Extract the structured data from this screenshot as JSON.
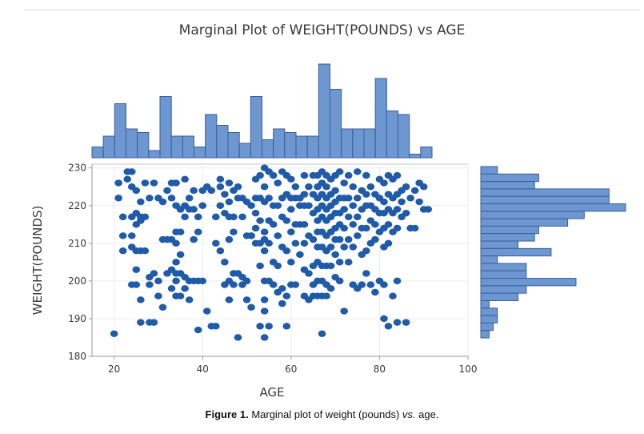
{
  "chart_data": {
    "type": "scatter",
    "title": "Marginal Plot of WEIGHT(POUNDS) vs AGE",
    "xlabel": "AGE",
    "ylabel": "WEIGHT(POUNDS)",
    "xlim": [
      15,
      100
    ],
    "ylim": [
      180,
      231
    ],
    "xticks": [
      20,
      40,
      60,
      80,
      100
    ],
    "yticks": [
      180,
      190,
      200,
      210,
      220,
      230
    ],
    "grid": true,
    "marker_color": "#1f5ba8",
    "hist_color": "#6d97d1",
    "hist_edge": "#3a5e9a",
    "age_histogram": {
      "bins": [
        {
          "x0": 19,
          "x1": 21,
          "count": 3
        },
        {
          "x0": 21,
          "x1": 23,
          "count": 6
        },
        {
          "x0": 23,
          "x1": 25,
          "count": 15
        },
        {
          "x0": 25,
          "x1": 27,
          "count": 8
        },
        {
          "x0": 27,
          "x1": 29,
          "count": 7
        },
        {
          "x0": 29,
          "x1": 31,
          "count": 2
        },
        {
          "x0": 31,
          "x1": 33,
          "count": 17
        },
        {
          "x0": 33,
          "x1": 35,
          "count": 6
        },
        {
          "x0": 35,
          "x1": 37,
          "count": 6
        },
        {
          "x0": 37,
          "x1": 39,
          "count": 3
        },
        {
          "x0": 39,
          "x1": 41,
          "count": 12
        },
        {
          "x0": 41,
          "x1": 43,
          "count": 9
        },
        {
          "x0": 43,
          "x1": 45,
          "count": 7
        },
        {
          "x0": 45,
          "x1": 47,
          "count": 4
        },
        {
          "x0": 47,
          "x1": 49,
          "count": 17
        },
        {
          "x0": 49,
          "x1": 51,
          "count": 5
        },
        {
          "x0": 51,
          "x1": 53,
          "count": 8
        },
        {
          "x0": 53,
          "x1": 55,
          "count": 7
        },
        {
          "x0": 55,
          "x1": 57,
          "count": 6
        },
        {
          "x0": 57,
          "x1": 59,
          "count": 6
        },
        {
          "x0": 59,
          "x1": 61,
          "count": 26
        },
        {
          "x0": 61,
          "x1": 63,
          "count": 19
        },
        {
          "x0": 63,
          "x1": 65,
          "count": 8
        },
        {
          "x0": 65,
          "x1": 67,
          "count": 8
        },
        {
          "x0": 67,
          "x1": 69,
          "count": 8
        },
        {
          "x0": 69,
          "x1": 71,
          "count": 22
        },
        {
          "x0": 71,
          "x1": 73,
          "count": 13
        },
        {
          "x0": 73,
          "x1": 75,
          "count": 12
        },
        {
          "x0": 75,
          "x1": 77,
          "count": 1
        },
        {
          "x0": 77,
          "x1": 79,
          "count": 3
        }
      ]
    },
    "weight_histogram": {
      "bins": [
        {
          "y0": 228,
          "y1": 230,
          "count": 4
        },
        {
          "y0": 226,
          "y1": 228,
          "count": 14
        },
        {
          "y0": 224,
          "y1": 226,
          "count": 13
        },
        {
          "y0": 222,
          "y1": 224,
          "count": 31
        },
        {
          "y0": 220,
          "y1": 222,
          "count": 31
        },
        {
          "y0": 218,
          "y1": 220,
          "count": 35
        },
        {
          "y0": 216,
          "y1": 218,
          "count": 25
        },
        {
          "y0": 214,
          "y1": 216,
          "count": 21
        },
        {
          "y0": 212,
          "y1": 214,
          "count": 14
        },
        {
          "y0": 210,
          "y1": 212,
          "count": 13
        },
        {
          "y0": 208,
          "y1": 210,
          "count": 9
        },
        {
          "y0": 206,
          "y1": 208,
          "count": 17
        },
        {
          "y0": 204,
          "y1": 206,
          "count": 4
        },
        {
          "y0": 202,
          "y1": 204,
          "count": 11
        },
        {
          "y0": 200,
          "y1": 202,
          "count": 11
        },
        {
          "y0": 198,
          "y1": 200,
          "count": 23
        },
        {
          "y0": 196,
          "y1": 198,
          "count": 11
        },
        {
          "y0": 194,
          "y1": 196,
          "count": 9
        },
        {
          "y0": 192,
          "y1": 194,
          "count": 2
        },
        {
          "y0": 190,
          "y1": 192,
          "count": 4
        },
        {
          "y0": 188,
          "y1": 190,
          "count": 4
        },
        {
          "y0": 186,
          "y1": 188,
          "count": 3
        },
        {
          "y0": 184,
          "y1": 186,
          "count": 2
        }
      ]
    },
    "points": [
      [
        20,
        186
      ],
      [
        21,
        226
      ],
      [
        21,
        222
      ],
      [
        22,
        217
      ],
      [
        22,
        212
      ],
      [
        22,
        208
      ],
      [
        23,
        229
      ],
      [
        23,
        227
      ],
      [
        24,
        229
      ],
      [
        24,
        225
      ],
      [
        24,
        217
      ],
      [
        24,
        212
      ],
      [
        24,
        209
      ],
      [
        24,
        199
      ],
      [
        25,
        224
      ],
      [
        25,
        218
      ],
      [
        25,
        215
      ],
      [
        25,
        208
      ],
      [
        25,
        203
      ],
      [
        25,
        199
      ],
      [
        26,
        221
      ],
      [
        26,
        217
      ],
      [
        26,
        216
      ],
      [
        26,
        208
      ],
      [
        26,
        195
      ],
      [
        26,
        189
      ],
      [
        27,
        226
      ],
      [
        27,
        217
      ],
      [
        27,
        208
      ],
      [
        28,
        222
      ],
      [
        28,
        201
      ],
      [
        28,
        199
      ],
      [
        28,
        189
      ],
      [
        29,
        226
      ],
      [
        29,
        202
      ],
      [
        29,
        189
      ],
      [
        30,
        222
      ],
      [
        30,
        200
      ],
      [
        30,
        196
      ],
      [
        31,
        221
      ],
      [
        31,
        211
      ],
      [
        31,
        193
      ],
      [
        32,
        224
      ],
      [
        32,
        211
      ],
      [
        32,
        202
      ],
      [
        33,
        226
      ],
      [
        33,
        222
      ],
      [
        33,
        211
      ],
      [
        33,
        203
      ],
      [
        33,
        198
      ],
      [
        34,
        226
      ],
      [
        34,
        220
      ],
      [
        34,
        213
      ],
      [
        34,
        210
      ],
      [
        34,
        205
      ],
      [
        34,
        202
      ],
      [
        34,
        200
      ],
      [
        34,
        196
      ],
      [
        35,
        219
      ],
      [
        35,
        219
      ],
      [
        35,
        213
      ],
      [
        35,
        207
      ],
      [
        35,
        202
      ],
      [
        35,
        196
      ],
      [
        36,
        227
      ],
      [
        36,
        220
      ],
      [
        36,
        217
      ],
      [
        36,
        201
      ],
      [
        36,
        198
      ],
      [
        37,
        222
      ],
      [
        37,
        219
      ],
      [
        37,
        200
      ],
      [
        37,
        195
      ],
      [
        38,
        224
      ],
      [
        38,
        219
      ],
      [
        38,
        211
      ],
      [
        38,
        200
      ],
      [
        39,
        217
      ],
      [
        39,
        213
      ],
      [
        39,
        200
      ],
      [
        39,
        187
      ],
      [
        40,
        224
      ],
      [
        40,
        220
      ],
      [
        40,
        200
      ],
      [
        41,
        225
      ],
      [
        41,
        192
      ],
      [
        42,
        224
      ],
      [
        42,
        188
      ],
      [
        43,
        217
      ],
      [
        43,
        210
      ],
      [
        43,
        188
      ],
      [
        44,
        227
      ],
      [
        44,
        225
      ],
      [
        44,
        220
      ],
      [
        44,
        208
      ],
      [
        45,
        223
      ],
      [
        45,
        218
      ],
      [
        45,
        205
      ],
      [
        45,
        199
      ],
      [
        46,
        226
      ],
      [
        46,
        221
      ],
      [
        46,
        217
      ],
      [
        46,
        211
      ],
      [
        46,
        200
      ],
      [
        46,
        195
      ],
      [
        47,
        224
      ],
      [
        47,
        217
      ],
      [
        47,
        213
      ],
      [
        47,
        202
      ],
      [
        47,
        199
      ],
      [
        48,
        225
      ],
      [
        48,
        222
      ],
      [
        48,
        202
      ],
      [
        48,
        185
      ],
      [
        49,
        222
      ],
      [
        49,
        217
      ],
      [
        49,
        201
      ],
      [
        49,
        199
      ],
      [
        50,
        221
      ],
      [
        50,
        212
      ],
      [
        50,
        200
      ],
      [
        50,
        195
      ],
      [
        51,
        220
      ],
      [
        51,
        212
      ],
      [
        51,
        212
      ],
      [
        51,
        193
      ],
      [
        52,
        227
      ],
      [
        52,
        222
      ],
      [
        52,
        218
      ],
      [
        52,
        214
      ],
      [
        52,
        210
      ],
      [
        53,
        228
      ],
      [
        53,
        222
      ],
      [
        53,
        216
      ],
      [
        53,
        210
      ],
      [
        53,
        204
      ],
      [
        53,
        188
      ],
      [
        54,
        230
      ],
      [
        54,
        225
      ],
      [
        54,
        221
      ],
      [
        54,
        213
      ],
      [
        54,
        211
      ],
      [
        54,
        208
      ],
      [
        54,
        200
      ],
      [
        54,
        195
      ],
      [
        54,
        192
      ],
      [
        54,
        185
      ],
      [
        55,
        229
      ],
      [
        55,
        222
      ],
      [
        55,
        216
      ],
      [
        55,
        210
      ],
      [
        55,
        200
      ],
      [
        55,
        188
      ],
      [
        56,
        228
      ],
      [
        56,
        220
      ],
      [
        56,
        215
      ],
      [
        56,
        205
      ],
      [
        56,
        199
      ],
      [
        57,
        226
      ],
      [
        57,
        220
      ],
      [
        57,
        212
      ],
      [
        57,
        204
      ],
      [
        57,
        197
      ],
      [
        58,
        229
      ],
      [
        58,
        222
      ],
      [
        58,
        217
      ],
      [
        58,
        209
      ],
      [
        58,
        198
      ],
      [
        58,
        194
      ],
      [
        59,
        228
      ],
      [
        59,
        223
      ],
      [
        59,
        216
      ],
      [
        59,
        208
      ],
      [
        59,
        196
      ],
      [
        59,
        188
      ],
      [
        60,
        227
      ],
      [
        60,
        222
      ],
      [
        60,
        219
      ],
      [
        60,
        213
      ],
      [
        60,
        205
      ],
      [
        60,
        199
      ],
      [
        61,
        225
      ],
      [
        61,
        222
      ],
      [
        61,
        215
      ],
      [
        61,
        210
      ],
      [
        61,
        199
      ],
      [
        62,
        222
      ],
      [
        62,
        220
      ],
      [
        62,
        215
      ],
      [
        62,
        207
      ],
      [
        63,
        228
      ],
      [
        63,
        223
      ],
      [
        63,
        220
      ],
      [
        63,
        215
      ],
      [
        63,
        210
      ],
      [
        63,
        203
      ],
      [
        63,
        196
      ],
      [
        64,
        225
      ],
      [
        64,
        220
      ],
      [
        64,
        212
      ],
      [
        64,
        202
      ],
      [
        64,
        195
      ],
      [
        65,
        228
      ],
      [
        65,
        223
      ],
      [
        65,
        218
      ],
      [
        65,
        211
      ],
      [
        65,
        204
      ],
      [
        65,
        199
      ],
      [
        65,
        196
      ],
      [
        66,
        228
      ],
      [
        66,
        225
      ],
      [
        66,
        222
      ],
      [
        66,
        219
      ],
      [
        66,
        216
      ],
      [
        66,
        213
      ],
      [
        66,
        209
      ],
      [
        66,
        205
      ],
      [
        66,
        200
      ],
      [
        66,
        196
      ],
      [
        67,
        229
      ],
      [
        67,
        226
      ],
      [
        67,
        223
      ],
      [
        67,
        220
      ],
      [
        67,
        217
      ],
      [
        67,
        213
      ],
      [
        67,
        209
      ],
      [
        67,
        204
      ],
      [
        67,
        200
      ],
      [
        67,
        196
      ],
      [
        67,
        186
      ],
      [
        68,
        228
      ],
      [
        68,
        225
      ],
      [
        68,
        222
      ],
      [
        68,
        219
      ],
      [
        68,
        216
      ],
      [
        68,
        212
      ],
      [
        68,
        208
      ],
      [
        68,
        204
      ],
      [
        68,
        199
      ],
      [
        68,
        196
      ],
      [
        69,
        227
      ],
      [
        69,
        223
      ],
      [
        69,
        220
      ],
      [
        69,
        217
      ],
      [
        69,
        213
      ],
      [
        69,
        209
      ],
      [
        69,
        204
      ],
      [
        69,
        198
      ],
      [
        70,
        228
      ],
      [
        70,
        224
      ],
      [
        70,
        221
      ],
      [
        70,
        218
      ],
      [
        70,
        214
      ],
      [
        70,
        211
      ],
      [
        70,
        207
      ],
      [
        70,
        201
      ],
      [
        71,
        229
      ],
      [
        71,
        222
      ],
      [
        71,
        218
      ],
      [
        71,
        215
      ],
      [
        71,
        211
      ],
      [
        71,
        205
      ],
      [
        71,
        200
      ],
      [
        72,
        226
      ],
      [
        72,
        222
      ],
      [
        72,
        219
      ],
      [
        72,
        214
      ],
      [
        72,
        209
      ],
      [
        72,
        192
      ],
      [
        73,
        228
      ],
      [
        73,
        222
      ],
      [
        73,
        217
      ],
      [
        73,
        211
      ],
      [
        73,
        205
      ],
      [
        74,
        225
      ],
      [
        74,
        220
      ],
      [
        74,
        215
      ],
      [
        74,
        209
      ],
      [
        74,
        199
      ],
      [
        75,
        229
      ],
      [
        75,
        222
      ],
      [
        75,
        217
      ],
      [
        75,
        212
      ],
      [
        75,
        198
      ],
      [
        76,
        224
      ],
      [
        76,
        219
      ],
      [
        76,
        214
      ],
      [
        76,
        207
      ],
      [
        76,
        199
      ],
      [
        77,
        228
      ],
      [
        77,
        223
      ],
      [
        77,
        220
      ],
      [
        77,
        214
      ],
      [
        77,
        208
      ],
      [
        77,
        202
      ],
      [
        78,
        225
      ],
      [
        78,
        220
      ],
      [
        78,
        216
      ],
      [
        78,
        210
      ],
      [
        78,
        199
      ],
      [
        79,
        223
      ],
      [
        79,
        219
      ],
      [
        79,
        215
      ],
      [
        79,
        211
      ],
      [
        79,
        197
      ],
      [
        80,
        227
      ],
      [
        80,
        222
      ],
      [
        80,
        218
      ],
      [
        80,
        213
      ],
      [
        80,
        200
      ],
      [
        81,
        226
      ],
      [
        81,
        221
      ],
      [
        81,
        218
      ],
      [
        81,
        214
      ],
      [
        81,
        209
      ],
      [
        81,
        199
      ],
      [
        81,
        190
      ],
      [
        82,
        228
      ],
      [
        82,
        223
      ],
      [
        82,
        219
      ],
      [
        82,
        215
      ],
      [
        82,
        210
      ],
      [
        82,
        188
      ],
      [
        83,
        227
      ],
      [
        83,
        222
      ],
      [
        83,
        218
      ],
      [
        83,
        213
      ],
      [
        83,
        196
      ],
      [
        84,
        228
      ],
      [
        84,
        223
      ],
      [
        84,
        219
      ],
      [
        84,
        214
      ],
      [
        84,
        200
      ],
      [
        84,
        189
      ],
      [
        85,
        224
      ],
      [
        85,
        221
      ],
      [
        85,
        217
      ],
      [
        86,
        225
      ],
      [
        86,
        218
      ],
      [
        86,
        189
      ],
      [
        87,
        222
      ],
      [
        87,
        214
      ],
      [
        88,
        224
      ],
      [
        88,
        214
      ],
      [
        89,
        226
      ],
      [
        89,
        221
      ],
      [
        90,
        225
      ],
      [
        90,
        219
      ],
      [
        91,
        219
      ]
    ]
  },
  "caption": {
    "label": "Figure 1.",
    "text_before": " Marginal plot of weight (pounds) ",
    "italic": "vs.",
    "text_after": " age."
  }
}
